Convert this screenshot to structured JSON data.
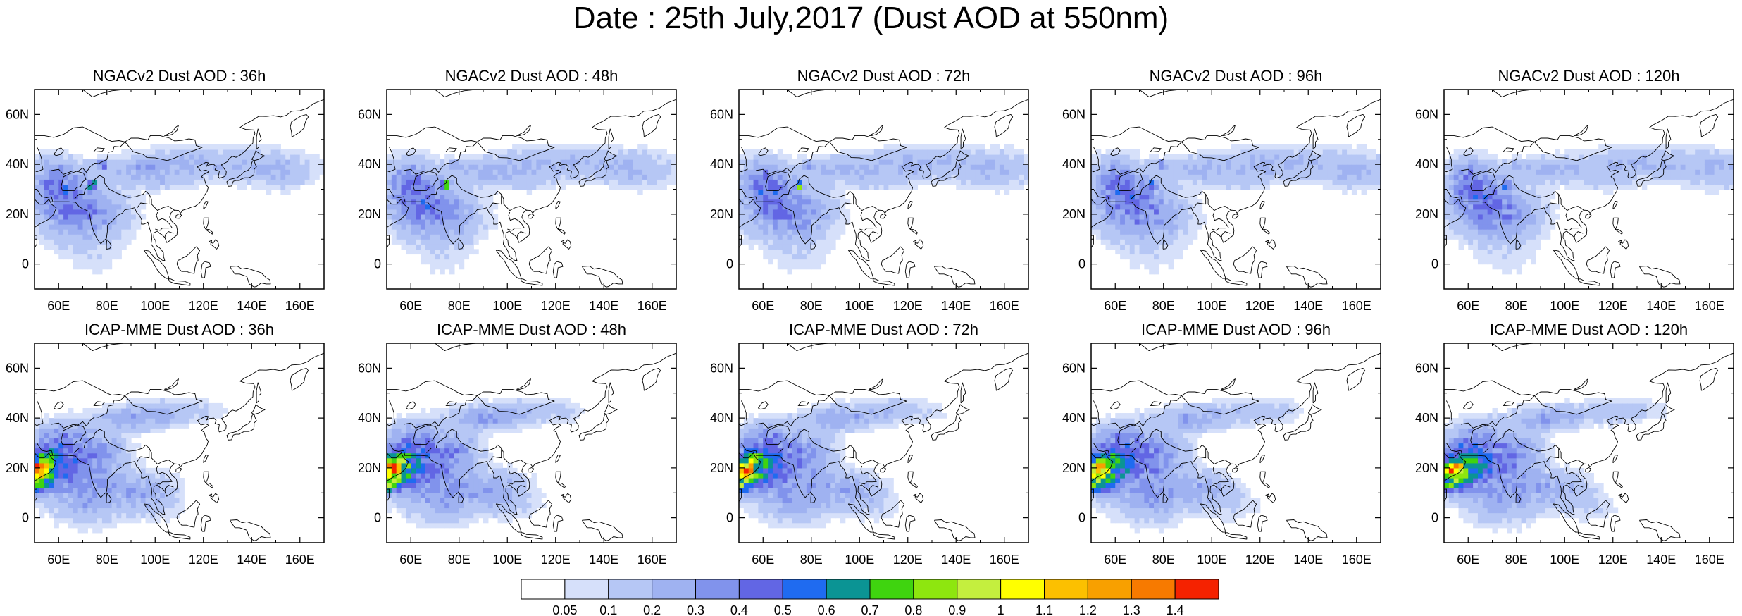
{
  "title": "Date : 25th July,2017 (Dust AOD at 550nm)",
  "x_tick_labels": [
    "60E",
    "80E",
    "100E",
    "120E",
    "140E",
    "160E"
  ],
  "y_tick_labels": [
    "60N",
    "40N",
    "20N",
    "0"
  ],
  "x_ticks_deg": [
    60,
    80,
    100,
    120,
    140,
    160
  ],
  "y_ticks_deg": [
    60,
    40,
    20,
    0
  ],
  "lon_range": [
    50,
    170
  ],
  "lat_range": [
    -10,
    70
  ],
  "rows": [
    {
      "model": "NGACv2",
      "panels": [
        {
          "title": "NGACv2 Dust AOD : 36h",
          "lead_hours": 36
        },
        {
          "title": "NGACv2 Dust AOD : 48h",
          "lead_hours": 48
        },
        {
          "title": "NGACv2 Dust AOD : 72h",
          "lead_hours": 72
        },
        {
          "title": "NGACv2 Dust AOD : 96h",
          "lead_hours": 96
        },
        {
          "title": "NGACv2 Dust AOD : 120h",
          "lead_hours": 120
        }
      ]
    },
    {
      "model": "ICAP-MME",
      "panels": [
        {
          "title": "ICAP-MME Dust AOD : 36h",
          "lead_hours": 36
        },
        {
          "title": "ICAP-MME Dust AOD : 48h",
          "lead_hours": 48
        },
        {
          "title": "ICAP-MME Dust AOD : 72h",
          "lead_hours": 72
        },
        {
          "title": "ICAP-MME Dust AOD : 96h",
          "lead_hours": 96
        },
        {
          "title": "ICAP-MME Dust AOD : 120h",
          "lead_hours": 120
        }
      ]
    }
  ],
  "colorbar": {
    "levels": [
      "0.05",
      "0.1",
      "0.2",
      "0.3",
      "0.4",
      "0.5",
      "0.6",
      "0.7",
      "0.8",
      "0.9",
      "1",
      "1.1",
      "1.2",
      "1.3",
      "1.4"
    ],
    "colors": [
      "#ffffff",
      "#d6e0fa",
      "#b6c7f5",
      "#9fb2f1",
      "#8193ec",
      "#6266e4",
      "#1f6bf0",
      "#0b9494",
      "#3fd40f",
      "#8ee60f",
      "#c4ef3e",
      "#ffff00",
      "#fcc000",
      "#f8a000",
      "#f77a00",
      "#f52200"
    ]
  }
}
